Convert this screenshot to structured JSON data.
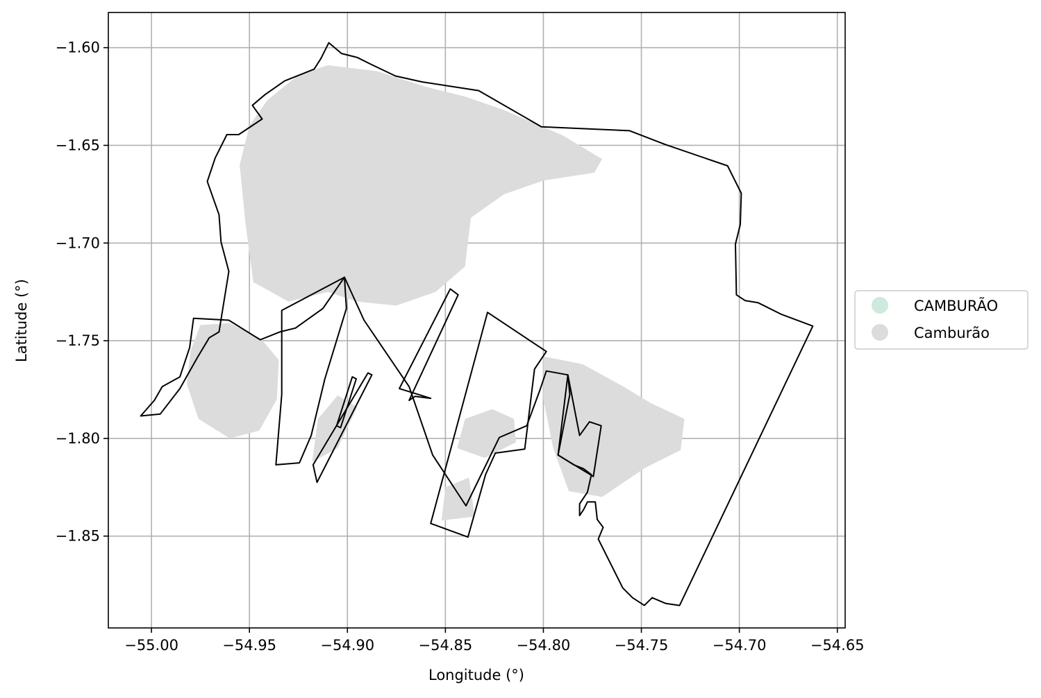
{
  "chart_data": {
    "type": "map",
    "xlabel": "Longitude (°)",
    "ylabel": "Latitude (°)",
    "xlim": [
      -55.022,
      -54.646
    ],
    "ylim": [
      -1.897,
      -1.582
    ],
    "grid": true,
    "xticks": [
      -55.0,
      -54.95,
      -54.9,
      -54.85,
      -54.8,
      -54.75,
      -54.7,
      -54.65
    ],
    "xtick_labels": [
      "−55.00",
      "−54.95",
      "−54.90",
      "−54.85",
      "−54.80",
      "−54.75",
      "−54.70",
      "−54.65"
    ],
    "yticks": [
      -1.6,
      -1.65,
      -1.7,
      -1.75,
      -1.8,
      -1.85
    ],
    "ytick_labels": [
      "−1.60",
      "−1.65",
      "−1.70",
      "−1.75",
      "−1.80",
      "−1.85"
    ],
    "legend": {
      "placement": "right-outside",
      "entries": [
        {
          "label": "CAMBURÃO",
          "color": "#cdeadc"
        },
        {
          "label": "Camburão",
          "color": "#dcdcdc"
        }
      ]
    },
    "boundary": [
      [
        -54.942,
        -1.624
      ],
      [
        -54.932,
        -1.617
      ],
      [
        -54.917,
        -1.611
      ],
      [
        -54.9135,
        -1.6055
      ],
      [
        -54.9095,
        -1.5975
      ],
      [
        -54.903,
        -1.603
      ],
      [
        -54.895,
        -1.605
      ],
      [
        -54.888,
        -1.6085
      ],
      [
        -54.8755,
        -1.6145
      ],
      [
        -54.862,
        -1.6175
      ],
      [
        -54.833,
        -1.622
      ],
      [
        -54.801,
        -1.6405
      ],
      [
        -54.756,
        -1.6425
      ],
      [
        -54.738,
        -1.6495
      ],
      [
        -54.706,
        -1.6605
      ],
      [
        -54.699,
        -1.6745
      ],
      [
        -54.6995,
        -1.6905
      ],
      [
        -54.702,
        -1.7005
      ],
      [
        -54.7015,
        -1.7265
      ],
      [
        -54.697,
        -1.7295
      ],
      [
        -54.6905,
        -1.7305
      ],
      [
        -54.6785,
        -1.7365
      ],
      [
        -54.6625,
        -1.7425
      ],
      [
        -54.7305,
        -1.8855
      ],
      [
        -54.7375,
        -1.8845
      ],
      [
        -54.7445,
        -1.8815
      ],
      [
        -54.7485,
        -1.8855
      ],
      [
        -54.7545,
        -1.8815
      ],
      [
        -54.7595,
        -1.8765
      ],
      [
        -54.772,
        -1.8515
      ],
      [
        -54.7695,
        -1.8455
      ],
      [
        -54.7725,
        -1.8415
      ],
      [
        -54.7735,
        -1.8325
      ],
      [
        -54.7775,
        -1.8325
      ],
      [
        -54.7795,
        -1.8365
      ],
      [
        -54.7815,
        -1.8395
      ],
      [
        -54.7815,
        -1.8335
      ],
      [
        -54.7775,
        -1.8275
      ],
      [
        -54.7755,
        -1.8185
      ],
      [
        -54.7795,
        -1.8155
      ],
      [
        -54.7845,
        -1.8135
      ],
      [
        -54.7925,
        -1.8085
      ],
      [
        -54.7865,
        -1.7775
      ],
      [
        -54.7875,
        -1.7675
      ],
      [
        -54.7985,
        -1.7655
      ],
      [
        -54.8015,
        -1.7745
      ],
      [
        -54.8085,
        -1.7935
      ],
      [
        -54.8225,
        -1.7995
      ],
      [
        -54.8395,
        -1.8345
      ],
      [
        -54.8565,
        -1.8085
      ],
      [
        -54.8685,
        -1.7735
      ],
      [
        -54.8915,
        -1.7395
      ],
      [
        -54.9015,
        -1.7175
      ],
      [
        -54.9125,
        -1.7335
      ],
      [
        -54.9265,
        -1.7435
      ],
      [
        -54.9345,
        -1.7455
      ],
      [
        -54.9445,
        -1.7495
      ],
      [
        -54.9605,
        -1.7395
      ],
      [
        -54.9785,
        -1.7385
      ],
      [
        -54.9805,
        -1.7535
      ],
      [
        -54.9855,
        -1.7685
      ],
      [
        -54.9945,
        -1.7735
      ],
      [
        -54.9985,
        -1.7805
      ],
      [
        -55.0055,
        -1.7885
      ],
      [
        -54.9955,
        -1.7875
      ],
      [
        -54.9855,
        -1.7745
      ],
      [
        -54.9765,
        -1.7585
      ],
      [
        -54.9705,
        -1.7485
      ],
      [
        -54.9655,
        -1.7455
      ],
      [
        -54.9605,
        -1.7145
      ],
      [
        -54.9645,
        -1.6995
      ],
      [
        -54.9655,
        -1.6855
      ],
      [
        -54.9715,
        -1.6685
      ],
      [
        -54.9675,
        -1.6565
      ],
      [
        -54.9615,
        -1.6445
      ],
      [
        -54.9555,
        -1.6445
      ],
      [
        -54.9435,
        -1.6365
      ],
      [
        -54.9485,
        -1.6295
      ]
    ],
    "sub_polygons": [
      [
        [
          -54.9335,
          -1.7345
        ],
        [
          -54.9015,
          -1.7175
        ],
        [
          -54.9005,
          -1.7335
        ],
        [
          -54.9115,
          -1.7695
        ],
        [
          -54.9185,
          -1.7985
        ],
        [
          -54.9245,
          -1.8125
        ],
        [
          -54.9365,
          -1.8135
        ],
        [
          -54.9335,
          -1.7775
        ]
      ],
      [
        [
          -54.9155,
          -1.8225
        ],
        [
          -54.8875,
          -1.7675
        ],
        [
          -54.8895,
          -1.7665
        ],
        [
          -54.9175,
          -1.8135
        ]
      ],
      [
        [
          -54.9055,
          -1.7935
        ],
        [
          -54.8975,
          -1.7685
        ],
        [
          -54.8955,
          -1.7695
        ],
        [
          -54.9035,
          -1.7945
        ]
      ],
      [
        [
          -54.8735,
          -1.7745
        ],
        [
          -54.8475,
          -1.7235
        ],
        [
          -54.8435,
          -1.7265
        ],
        [
          -54.8685,
          -1.7805
        ],
        [
          -54.8655,
          -1.7785
        ],
        [
          -54.8575,
          -1.7795
        ]
      ],
      [
        [
          -54.8575,
          -1.8435
        ],
        [
          -54.8285,
          -1.7355
        ],
        [
          -54.7985,
          -1.7555
        ],
        [
          -54.8045,
          -1.7645
        ],
        [
          -54.8095,
          -1.8055
        ],
        [
          -54.8245,
          -1.8075
        ],
        [
          -54.8295,
          -1.8185
        ],
        [
          -54.8385,
          -1.8505
        ]
      ],
      [
        [
          -54.7925,
          -1.8085
        ],
        [
          -54.7875,
          -1.7675
        ],
        [
          -54.7815,
          -1.7985
        ],
        [
          -54.7765,
          -1.7915
        ],
        [
          -54.7705,
          -1.7935
        ],
        [
          -54.7745,
          -1.8195
        ]
      ]
    ],
    "shaded_regions": [
      [
        [
          -54.941,
          -1.627
        ],
        [
          -54.925,
          -1.614
        ],
        [
          -54.91,
          -1.609
        ],
        [
          -54.885,
          -1.612
        ],
        [
          -54.86,
          -1.62
        ],
        [
          -54.84,
          -1.625
        ],
        [
          -54.82,
          -1.632
        ],
        [
          -54.79,
          -1.645
        ],
        [
          -54.77,
          -1.657
        ],
        [
          -54.774,
          -1.664
        ],
        [
          -54.8,
          -1.668
        ],
        [
          -54.82,
          -1.675
        ],
        [
          -54.837,
          -1.687
        ],
        [
          -54.84,
          -1.712
        ],
        [
          -54.855,
          -1.725
        ],
        [
          -54.875,
          -1.732
        ],
        [
          -54.895,
          -1.73
        ],
        [
          -54.91,
          -1.725
        ],
        [
          -54.93,
          -1.73
        ],
        [
          -54.948,
          -1.72
        ],
        [
          -54.952,
          -1.69
        ],
        [
          -54.955,
          -1.66
        ],
        [
          -54.95,
          -1.64
        ]
      ],
      [
        [
          -54.975,
          -1.742
        ],
        [
          -54.96,
          -1.741
        ],
        [
          -54.944,
          -1.749
        ],
        [
          -54.935,
          -1.76
        ],
        [
          -54.936,
          -1.78
        ],
        [
          -54.945,
          -1.796
        ],
        [
          -54.96,
          -1.8
        ],
        [
          -54.976,
          -1.79
        ],
        [
          -54.982,
          -1.772
        ],
        [
          -54.98,
          -1.755
        ]
      ],
      [
        [
          -54.8,
          -1.758
        ],
        [
          -54.78,
          -1.762
        ],
        [
          -54.76,
          -1.773
        ],
        [
          -54.745,
          -1.782
        ],
        [
          -54.728,
          -1.79
        ],
        [
          -54.73,
          -1.806
        ],
        [
          -54.748,
          -1.815
        ],
        [
          -54.77,
          -1.83
        ],
        [
          -54.787,
          -1.827
        ],
        [
          -54.795,
          -1.805
        ],
        [
          -54.8,
          -1.78
        ]
      ],
      [
        [
          -54.84,
          -1.79
        ],
        [
          -54.826,
          -1.785
        ],
        [
          -54.815,
          -1.79
        ],
        [
          -54.814,
          -1.802
        ],
        [
          -54.83,
          -1.81
        ],
        [
          -54.844,
          -1.805
        ]
      ],
      [
        [
          -54.85,
          -1.825
        ],
        [
          -54.838,
          -1.82
        ],
        [
          -54.835,
          -1.84
        ],
        [
          -54.852,
          -1.842
        ]
      ],
      [
        [
          -54.915,
          -1.79
        ],
        [
          -54.905,
          -1.778
        ],
        [
          -54.895,
          -1.784
        ],
        [
          -54.905,
          -1.805
        ],
        [
          -54.918,
          -1.812
        ]
      ]
    ]
  }
}
